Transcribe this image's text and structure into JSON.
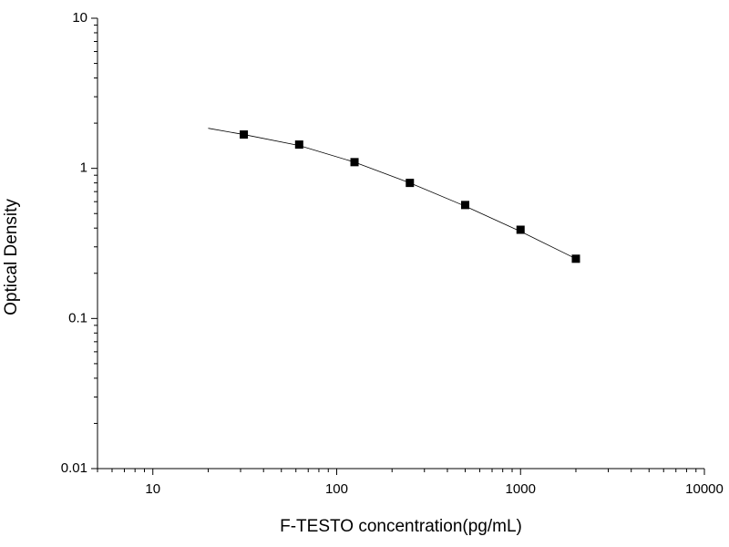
{
  "chart_data": {
    "type": "scatter",
    "x_label": "F-TESTO concentration(pg/mL)",
    "y_label": "Optical Density",
    "xlog": true,
    "ylog": true,
    "xlim": [
      5,
      10000
    ],
    "ylim": [
      0.01,
      10
    ],
    "xticks": [
      10,
      100,
      1000,
      10000
    ],
    "yticks": [
      0.01,
      0.1,
      1,
      10
    ],
    "series": [
      {
        "color": "#000000",
        "marker": "square",
        "x": [
          31.25,
          62.5,
          125,
          250,
          500,
          1000,
          2000
        ],
        "values": [
          1.68,
          1.44,
          1.1,
          0.8,
          0.57,
          0.39,
          0.25
        ]
      },
      {
        "color": "#000000",
        "marker": "line",
        "x": [
          20,
          31.25,
          62.5,
          125,
          250,
          500,
          1000,
          2000
        ],
        "values": [
          1.85,
          1.68,
          1.42,
          1.1,
          0.8,
          0.56,
          0.38,
          0.25
        ]
      }
    ]
  }
}
